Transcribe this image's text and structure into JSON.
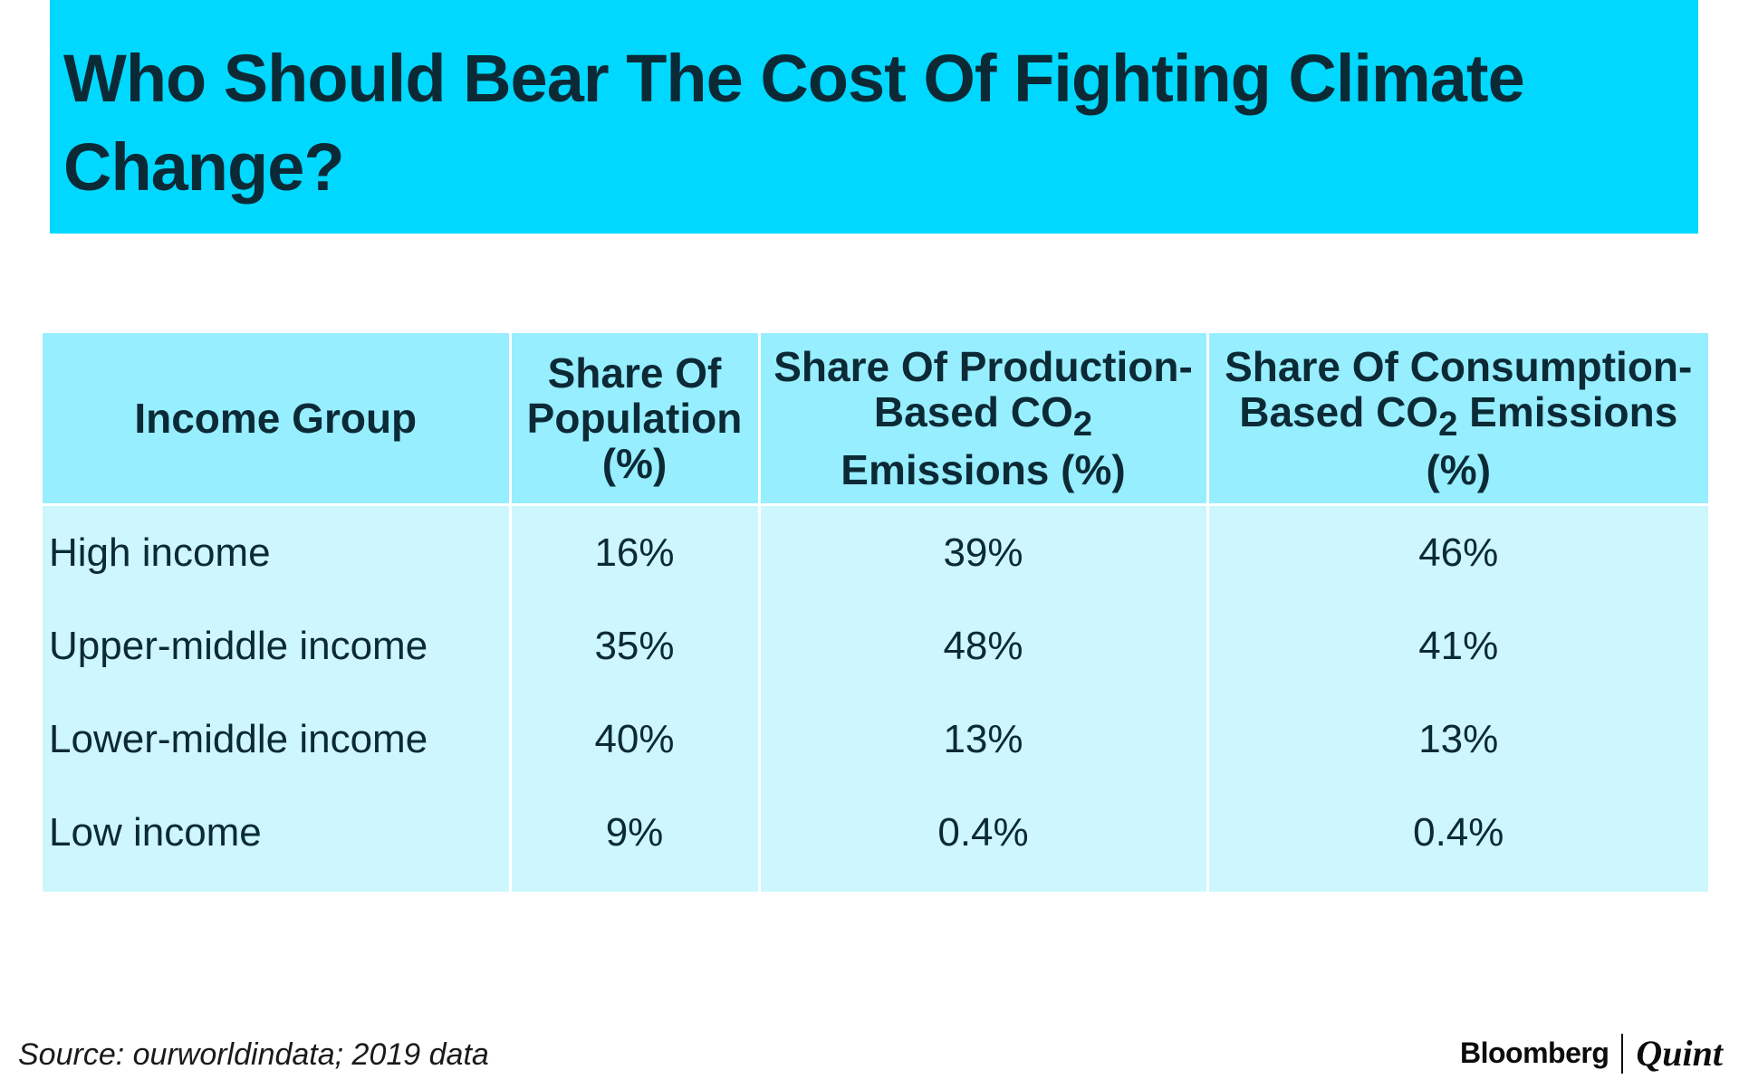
{
  "chart_data": {
    "type": "table",
    "title": "Who Should Bear The Cost Of Fighting Climate Change?",
    "columns": [
      {
        "pre": "Income Group"
      },
      {
        "pre": "Share Of Population (%)"
      },
      {
        "pre": "Share Of Production-Based CO",
        "sub": "2",
        "post": " Emissions (%)"
      },
      {
        "pre": "Share Of Consumption-Based CO",
        "sub": "2",
        "post": " Emissions (%)"
      }
    ],
    "rows": [
      {
        "group": "High income",
        "population": "16%",
        "production": "39%",
        "consumption": "46%"
      },
      {
        "group": "Upper-middle income",
        "population": "35%",
        "production": "48%",
        "consumption": "41%"
      },
      {
        "group": "Lower-middle income",
        "population": "40%",
        "production": "13%",
        "consumption": "13%"
      },
      {
        "group": "Low income",
        "population": "9%",
        "production": "0.4%",
        "consumption": "0.4%"
      }
    ],
    "source": "Source: ourworldindata; 2019 data"
  },
  "branding": {
    "left": "Bloomberg",
    "right": "Quint"
  },
  "colors": {
    "title_band": "#00d8ff",
    "header_fill": "#97eeff",
    "body_fill": "#cdf6fd",
    "text": "#0c2a36"
  }
}
